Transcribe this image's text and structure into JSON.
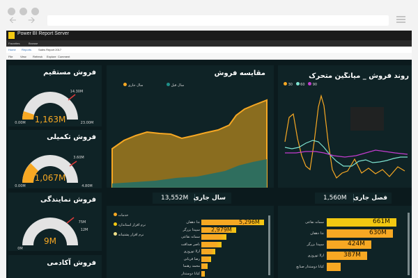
{
  "browser": {
    "report_server_title": "Power BI Report Server"
  },
  "pbi_toolbar": {
    "favorites": "Favorites",
    "browse": "Browse"
  },
  "breadcrumb": {
    "home": "Home",
    "folder": "Reports",
    "current": "Sales Report 2017"
  },
  "cmdbar": {
    "file": "File",
    "view": "View",
    "refresh": "Refresh",
    "export": "Explore",
    "comment": "Comment"
  },
  "gauges": [
    {
      "title": "فروش مستقیم",
      "value": "1,163M",
      "min": "0.00M",
      "max": "23.00M",
      "target": "14.30M",
      "fill": 0.05
    },
    {
      "title": "فروش تکمیلی",
      "value": "1,067M",
      "min": "0.00M",
      "max": "4.80M",
      "target": "3.60M",
      "fill": 0.22
    },
    {
      "title": "فروش نمایندگی",
      "value": "9M",
      "min": "0M",
      "max": "12M",
      "target": "75M",
      "fill": 0.0
    },
    {
      "title": "فروش آکادمی",
      "value": "",
      "min": "",
      "max": "",
      "target": "",
      "fill": 0.0
    }
  ],
  "comparison": {
    "title": "مقایسه فروش",
    "legend": [
      {
        "label": "سال جاری",
        "color": "#f7a823"
      },
      {
        "label": "سال قبل",
        "color": "#1f8f89"
      }
    ]
  },
  "moving": {
    "title": "روند فروش _ میانگین متحرک",
    "legend": [
      {
        "label": "30",
        "color": "#f7a823"
      },
      {
        "label": "60",
        "color": "#7ee3d1"
      },
      {
        "label": "90",
        "color": "#c33ccf"
      }
    ]
  },
  "kpis": {
    "current_year_label": "سال جاری",
    "current_year_value": "13,552M",
    "season_label": "فصل جاری",
    "season_value": "1,560M"
  },
  "bars_left": {
    "legend": [
      {
        "label": "خدمات",
        "color": "#f7a823"
      },
      {
        "label": "نرم افزار استاندارد",
        "color": "#f2c811"
      },
      {
        "label": "نرم افزار پشتیبانه",
        "color": "#f0e08a"
      }
    ],
    "rows": [
      {
        "label": "ندا دهقان",
        "value": "5,296M",
        "level": 1.0
      },
      {
        "label": "سپیدا بزرگر",
        "value": "2,979M",
        "level": 0.56
      },
      {
        "label": "سمانه نقاعی",
        "value": "",
        "level": 0.4
      },
      {
        "label": "ناصر صداقت",
        "value": "",
        "level": 0.32
      },
      {
        "label": "ارلا توروزی",
        "value": "",
        "level": 0.22
      },
      {
        "label": "رضا قربانی",
        "value": "",
        "level": 0.16
      },
      {
        "label": "محمد رهنما",
        "value": "",
        "level": 0.1
      },
      {
        "label": "کیانا دوستدار",
        "value": "",
        "level": 0.06
      }
    ]
  },
  "bars_right": {
    "rows": [
      {
        "label": "سمانه نقاعی",
        "value": "661M",
        "level": 1.0
      },
      {
        "label": "ندا دهقان",
        "value": "630M",
        "level": 0.95
      },
      {
        "label": "سپیدا بزرگر",
        "value": "424M",
        "level": 0.64
      },
      {
        "label": "ارلا توروزی",
        "value": "387M",
        "level": 0.58
      },
      {
        "label": "کیانا دوستدار صنایع",
        "value": "",
        "level": 0.2
      }
    ]
  },
  "colors": {
    "canvas": "#0b1a1d",
    "panel": "#0f2326",
    "orange": "#f7a823",
    "teal": "#1f8f89",
    "yellow": "#f2c811"
  }
}
